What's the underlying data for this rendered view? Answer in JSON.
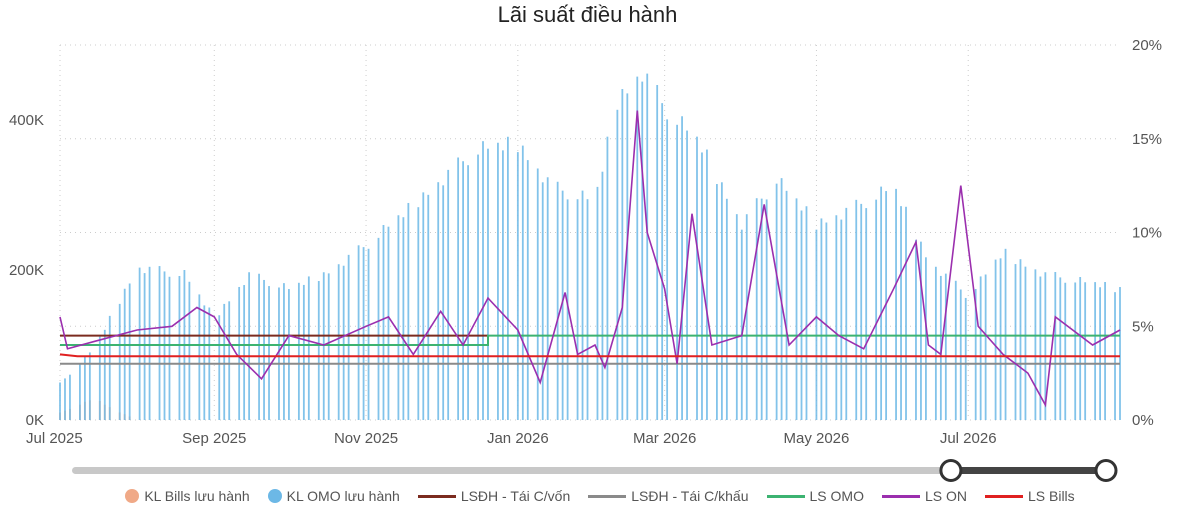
{
  "chart_data": {
    "type": "bar+line",
    "title": "Lãi suất điều hành",
    "x_ticks": [
      "Jul 2025",
      "Sep 2025",
      "Nov 2025",
      "Jan 2026",
      "Mar 2026",
      "May 2026",
      "Jul 2026"
    ],
    "x_range": [
      "2025-07-01",
      "2026-08-31"
    ],
    "y_left": {
      "ticks": [
        "0K",
        "200K",
        "400K"
      ],
      "tick_values": [
        0,
        200000,
        400000
      ],
      "range": [
        0,
        500000
      ]
    },
    "y_right": {
      "ticks": [
        "0%",
        "5%",
        "10%",
        "15%",
        "20%"
      ],
      "tick_values": [
        0,
        5,
        10,
        15,
        20
      ],
      "range": [
        0,
        20
      ]
    },
    "legend_position": "bottom-center",
    "grid": "dotted",
    "series": [
      {
        "name": "KL Bills lưu hành",
        "kind": "bar",
        "axis": "left",
        "color": "#f0a987",
        "points": [
          [
            "2025-07-01",
            10000
          ],
          [
            "2025-07-08",
            20000
          ],
          [
            "2025-07-15",
            30000
          ],
          [
            "2025-07-22",
            15000
          ],
          [
            "2025-07-29",
            5000
          ]
        ]
      },
      {
        "name": "KL OMO lưu hành",
        "kind": "bar",
        "axis": "left",
        "color": "#6cb8e6",
        "points": [
          [
            "2025-07-01",
            50000
          ],
          [
            "2025-07-15",
            100000
          ],
          [
            "2025-08-01",
            210000
          ],
          [
            "2025-08-20",
            200000
          ],
          [
            "2025-09-01",
            140000
          ],
          [
            "2025-09-15",
            200000
          ],
          [
            "2025-10-01",
            180000
          ],
          [
            "2025-10-15",
            200000
          ],
          [
            "2025-11-01",
            240000
          ],
          [
            "2025-11-15",
            280000
          ],
          [
            "2025-12-01",
            330000
          ],
          [
            "2025-12-15",
            370000
          ],
          [
            "2026-01-01",
            380000
          ],
          [
            "2026-01-15",
            320000
          ],
          [
            "2026-02-01",
            300000
          ],
          [
            "2026-02-10",
            440000
          ],
          [
            "2026-02-20",
            480000
          ],
          [
            "2026-03-01",
            430000
          ],
          [
            "2026-03-15",
            380000
          ],
          [
            "2026-04-01",
            270000
          ],
          [
            "2026-04-15",
            330000
          ],
          [
            "2026-05-01",
            270000
          ],
          [
            "2026-05-15",
            290000
          ],
          [
            "2026-06-01",
            320000
          ],
          [
            "2026-06-15",
            220000
          ],
          [
            "2026-07-01",
            170000
          ],
          [
            "2026-07-15",
            230000
          ],
          [
            "2026-08-01",
            200000
          ],
          [
            "2026-08-31",
            180000
          ]
        ]
      },
      {
        "name": "LSĐH - Tái C/vốn",
        "kind": "line",
        "axis": "right",
        "color": "#7b2b1f",
        "points": [
          [
            "2025-07-01",
            4.5
          ],
          [
            "2025-12-20",
            4.5
          ]
        ]
      },
      {
        "name": "LSĐH - Tái C/khấu",
        "kind": "line",
        "axis": "right",
        "color": "#8a8a8a",
        "points": [
          [
            "2025-07-01",
            3.0
          ],
          [
            "2026-08-31",
            3.0
          ]
        ]
      },
      {
        "name": "LS OMO",
        "kind": "line",
        "axis": "right",
        "color": "#3cb371",
        "points": [
          [
            "2025-07-01",
            4.0
          ],
          [
            "2025-12-20",
            4.0
          ],
          [
            "2025-12-20",
            4.5
          ],
          [
            "2026-08-31",
            4.5
          ]
        ]
      },
      {
        "name": "LS ON",
        "kind": "line",
        "axis": "right",
        "color": "#9b2fae",
        "points": [
          [
            "2025-07-01",
            5.5
          ],
          [
            "2025-07-04",
            3.8
          ],
          [
            "2025-07-15",
            4.2
          ],
          [
            "2025-08-01",
            4.8
          ],
          [
            "2025-08-15",
            5.0
          ],
          [
            "2025-08-25",
            6.0
          ],
          [
            "2025-09-01",
            5.5
          ],
          [
            "2025-09-10",
            3.5
          ],
          [
            "2025-09-20",
            2.2
          ],
          [
            "2025-10-01",
            4.5
          ],
          [
            "2025-10-15",
            4.0
          ],
          [
            "2025-11-01",
            5.0
          ],
          [
            "2025-11-10",
            5.5
          ],
          [
            "2025-11-20",
            3.5
          ],
          [
            "2025-12-01",
            5.8
          ],
          [
            "2025-12-10",
            4.0
          ],
          [
            "2025-12-20",
            6.5
          ],
          [
            "2026-01-01",
            4.8
          ],
          [
            "2026-01-10",
            2.0
          ],
          [
            "2026-01-20",
            6.8
          ],
          [
            "2026-01-25",
            3.5
          ],
          [
            "2026-02-01",
            4.0
          ],
          [
            "2026-02-05",
            2.8
          ],
          [
            "2026-02-12",
            6.0
          ],
          [
            "2026-02-18",
            16.5
          ],
          [
            "2026-02-22",
            10.0
          ],
          [
            "2026-03-01",
            7.0
          ],
          [
            "2026-03-06",
            3.0
          ],
          [
            "2026-03-12",
            11.0
          ],
          [
            "2026-03-20",
            4.0
          ],
          [
            "2026-04-01",
            4.5
          ],
          [
            "2026-04-10",
            11.5
          ],
          [
            "2026-04-20",
            4.0
          ],
          [
            "2026-05-01",
            5.5
          ],
          [
            "2026-05-10",
            4.5
          ],
          [
            "2026-05-20",
            3.8
          ],
          [
            "2026-06-01",
            7.0
          ],
          [
            "2026-06-10",
            9.5
          ],
          [
            "2026-06-15",
            4.0
          ],
          [
            "2026-06-20",
            3.5
          ],
          [
            "2026-06-28",
            12.5
          ],
          [
            "2026-07-05",
            5.0
          ],
          [
            "2026-07-15",
            3.5
          ],
          [
            "2026-07-25",
            2.5
          ],
          [
            "2026-08-01",
            0.8
          ],
          [
            "2026-08-05",
            5.5
          ],
          [
            "2026-08-20",
            4.0
          ],
          [
            "2026-08-31",
            4.8
          ]
        ]
      },
      {
        "name": "LS Bills",
        "kind": "line",
        "axis": "right",
        "color": "#e02020",
        "points": [
          [
            "2025-07-01",
            3.5
          ],
          [
            "2025-07-08",
            3.4
          ],
          [
            "2026-08-31",
            3.4
          ]
        ]
      }
    ]
  },
  "legend": [
    {
      "label": "KL Bills lưu hành",
      "style": "dot",
      "color": "#f0a987"
    },
    {
      "label": "KL OMO lưu hành",
      "style": "dot",
      "color": "#6cb8e6"
    },
    {
      "label": "LSĐH - Tái C/vốn",
      "style": "line",
      "color": "#7b2b1f"
    },
    {
      "label": "LSĐH - Tái C/khấu",
      "style": "line",
      "color": "#8a8a8a"
    },
    {
      "label": "LS OMO",
      "style": "line",
      "color": "#3cb371"
    },
    {
      "label": "LS ON",
      "style": "line",
      "color": "#9b2fae"
    },
    {
      "label": "LS Bills",
      "style": "line",
      "color": "#e02020"
    }
  ],
  "range_slider": {
    "start_fraction": 0.85,
    "end_fraction": 1.0
  }
}
